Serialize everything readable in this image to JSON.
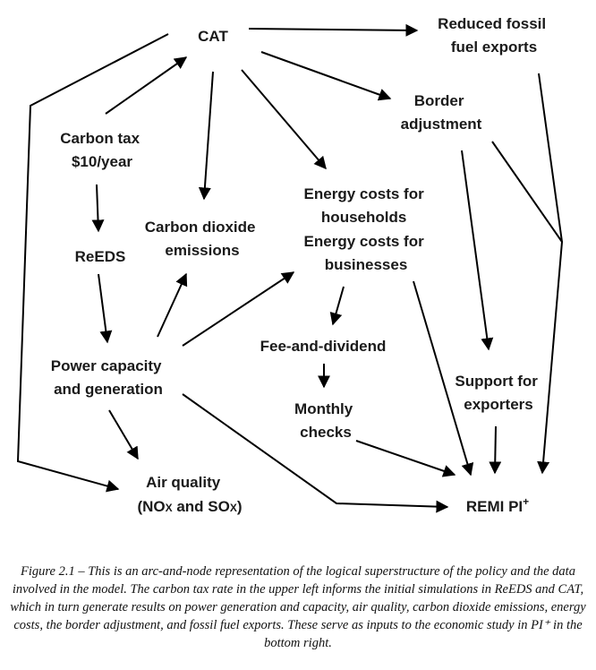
{
  "nodes": {
    "cat": "CAT",
    "reduced_fossil": [
      "Reduced fossil",
      "fuel exports"
    ],
    "border_adjustment": [
      "Border",
      "adjustment"
    ],
    "carbon_tax": [
      "Carbon tax",
      "$10/year"
    ],
    "energy_costs": [
      "Energy costs for",
      "households",
      "Energy costs for",
      "businesses"
    ],
    "carbon_dioxide": [
      "Carbon dioxide",
      "emissions"
    ],
    "reeds": "ReEDS",
    "fee_dividend": "Fee-and-dividend",
    "power_capacity": [
      "Power capacity",
      "and generation"
    ],
    "monthly_checks": [
      "Monthly",
      "checks"
    ],
    "support_exporters": [
      "Support for",
      "exporters"
    ],
    "air_quality": {
      "line1": "Air quality",
      "open": "(NO",
      "x1": "X",
      "mid": " and SO",
      "x2": "X",
      "close": ")"
    },
    "remi": {
      "main": "REMI PI",
      "sup": "+"
    }
  },
  "caption": "Figure 2.1 – This is an arc-and-node representation of the logical superstructure of the policy and the data involved in the model. The carbon tax rate in the upper left informs the initial simulations in ReEDS and CAT, which in turn generate results on power generation and capacity, air quality, carbon dioxide emissions, energy costs, the border adjustment, and fossil fuel exports. These serve as inputs to the economic study in PI⁺ in the bottom right."
}
